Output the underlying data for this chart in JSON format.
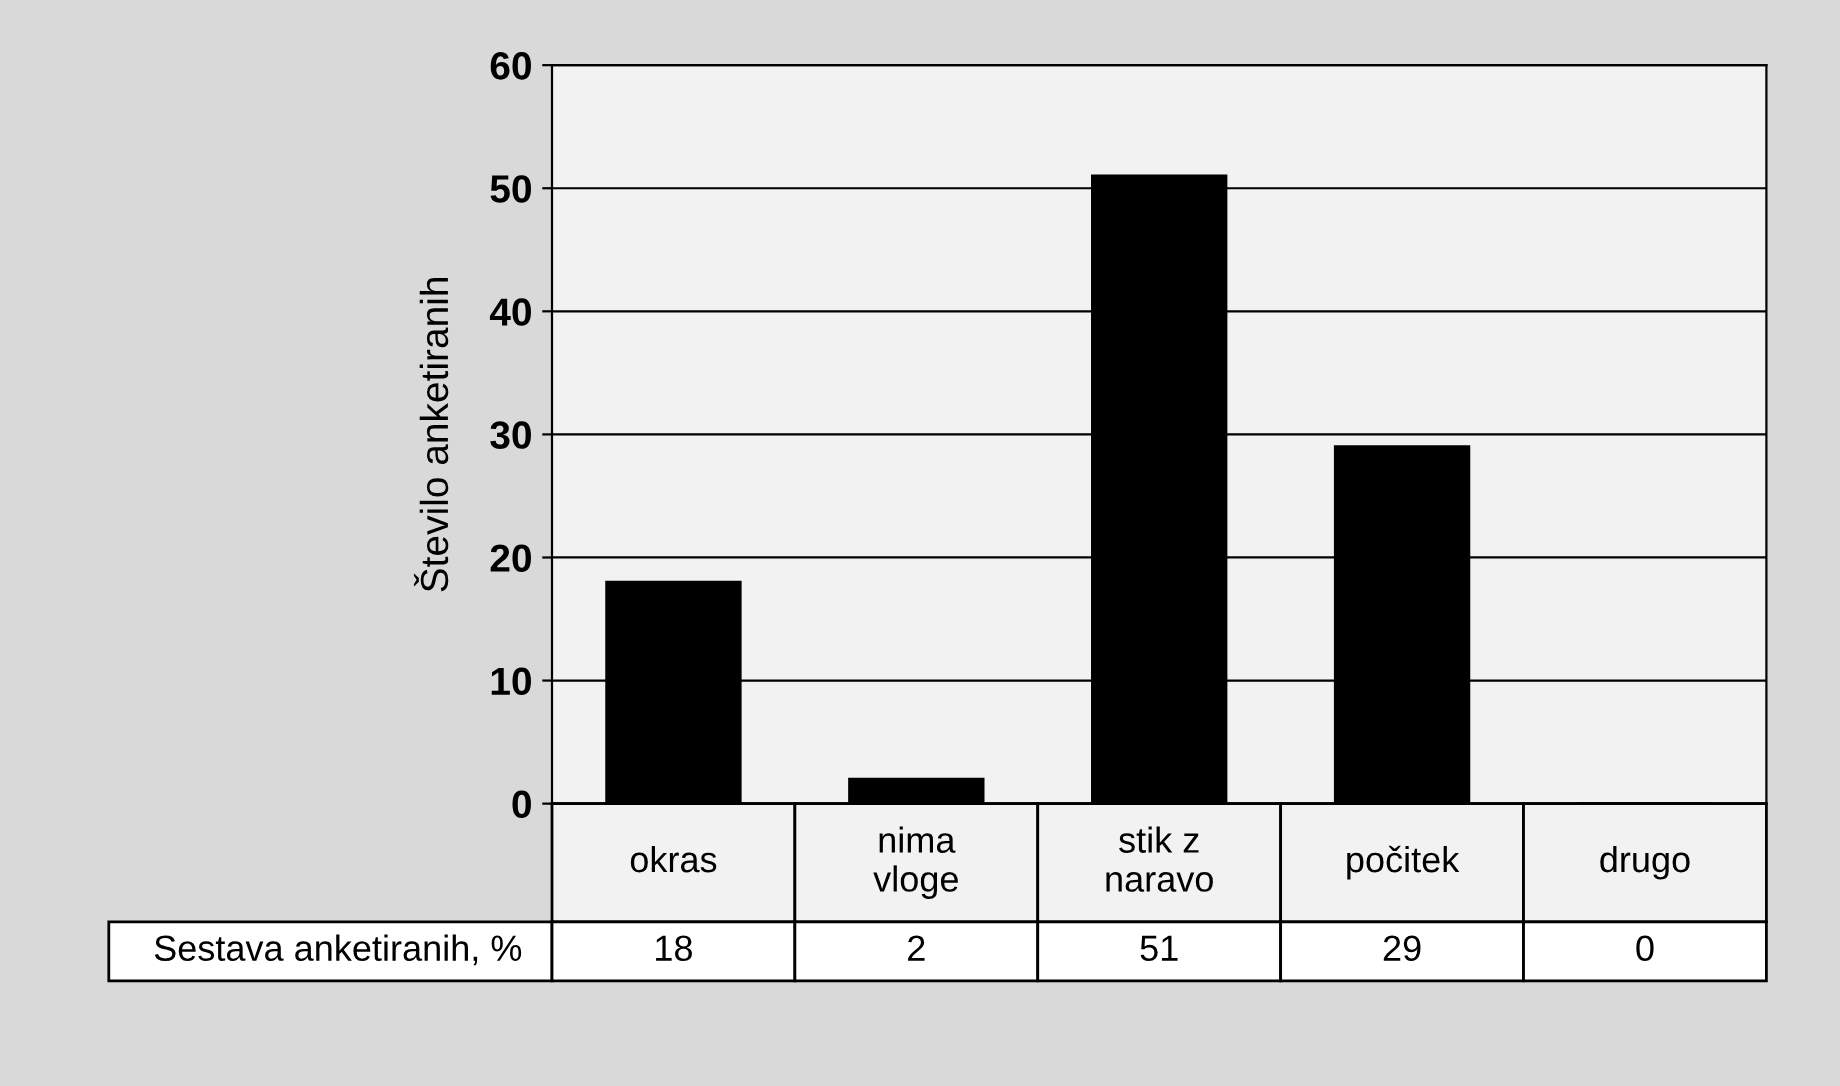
{
  "chart_data": {
    "type": "bar",
    "ylabel": "Število anketiranih",
    "categories": [
      "okras",
      "nima\nvloge",
      "stik z\nnaravo",
      "počitek",
      "drugo"
    ],
    "series": [
      {
        "name": "Sestava anketiranih, %",
        "color": "#000000",
        "values": [
          18,
          2,
          51,
          29,
          0
        ]
      }
    ],
    "ylim": [
      0,
      60
    ],
    "yticks": [
      0,
      10,
      20,
      30,
      40,
      50,
      60
    ],
    "grid": "y",
    "data_labels": true
  }
}
